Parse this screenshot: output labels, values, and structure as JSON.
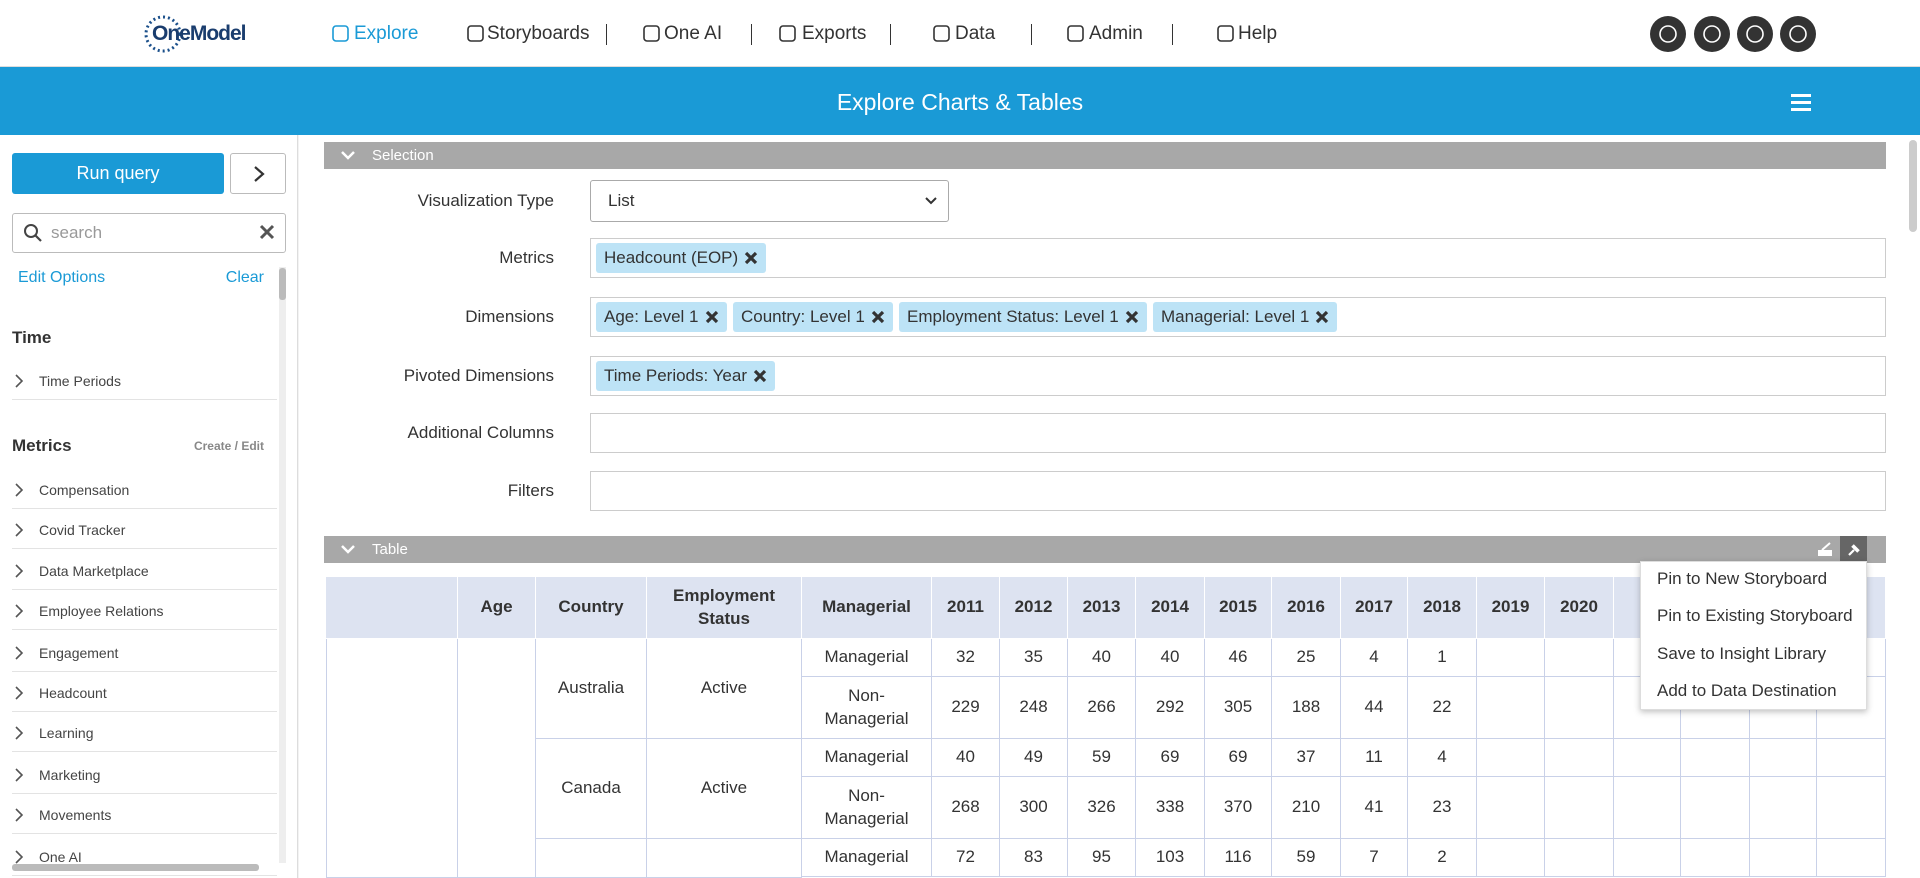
{
  "nav": {
    "logo": "OneModel",
    "items": [
      "Explore",
      "Storyboards",
      "One AI",
      "Exports",
      "Data",
      "Admin",
      "Help"
    ]
  },
  "header": {
    "title": "Explore Charts & Tables"
  },
  "sidebar": {
    "run_query": "Run query",
    "search_placeholder": "search",
    "edit_options": "Edit Options",
    "clear": "Clear",
    "sections": [
      {
        "title": "Time",
        "items": [
          "Time Periods"
        ]
      },
      {
        "title": "Metrics",
        "action": "Create / Edit",
        "items": [
          "Compensation",
          "Covid Tracker",
          "Data Marketplace",
          "Employee Relations",
          "Engagement",
          "Headcount",
          "Learning",
          "Marketing",
          "Movements",
          "One AI"
        ]
      }
    ]
  },
  "selection": {
    "title": "Selection",
    "fields": [
      {
        "label": "Visualization Type",
        "value": "List"
      },
      {
        "label": "Metrics",
        "tags": [
          "Headcount (EOP)"
        ]
      },
      {
        "label": "Dimensions",
        "tags": [
          "Age: Level 1",
          "Country: Level 1",
          "Employment Status: Level 1",
          "Managerial: Level 1"
        ]
      },
      {
        "label": "Pivoted Dimensions",
        "tags": [
          "Time Periods: Year"
        ]
      },
      {
        "label": "Additional Columns"
      },
      {
        "label": "Filters"
      }
    ]
  },
  "table": {
    "title": "Table",
    "columns": [
      "Age",
      "Country",
      "Employment Status",
      "Managerial",
      "2011",
      "2012",
      "2013",
      "2014",
      "2015",
      "2016",
      "2017",
      "2018",
      "2019",
      "2020"
    ],
    "groups": [
      {
        "country": "Australia",
        "status": "Active",
        "rows": [
          {
            "managerial": "Managerial",
            "values": [
              32,
              35,
              40,
              40,
              46,
              25,
              4,
              1
            ]
          },
          {
            "managerial": "Non-Managerial",
            "values": [
              229,
              248,
              266,
              292,
              305,
              188,
              44,
              22
            ]
          }
        ]
      },
      {
        "country": "Canada",
        "status": "Active",
        "rows": [
          {
            "managerial": "Managerial",
            "values": [
              40,
              49,
              59,
              69,
              69,
              37,
              11,
              4
            ]
          },
          {
            "managerial": "Non-Managerial",
            "values": [
              268,
              300,
              326,
              338,
              370,
              210,
              41,
              23
            ]
          }
        ]
      },
      {
        "rows": [
          {
            "managerial": "Managerial",
            "values": [
              72,
              83,
              95,
              103,
              116,
              59,
              7,
              2
            ]
          }
        ]
      }
    ]
  },
  "menu": {
    "items": [
      "Pin to New Storyboard",
      "Pin to Existing Storyboard",
      "Save to Insight Library",
      "Add to Data Destination"
    ]
  }
}
